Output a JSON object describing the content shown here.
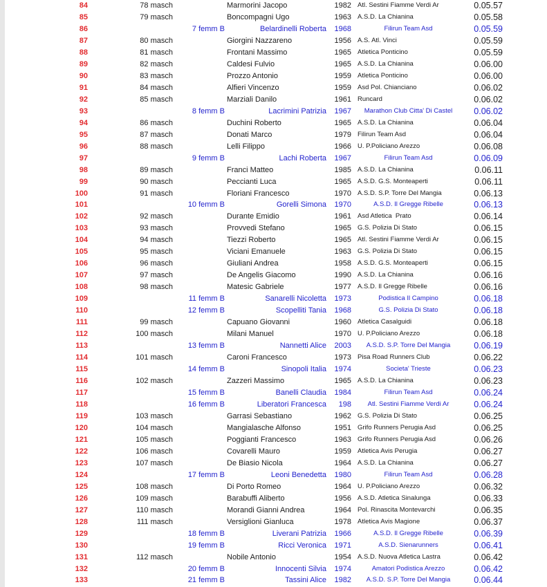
{
  "colors": {
    "position_number": "#e22b2f",
    "male_text": "#1c1c1c",
    "female_text": "#2323cd",
    "background": "#ffffff",
    "left_strip": "#e7e7e7"
  },
  "table": {
    "rows": [
      {
        "pos": "84",
        "category": "78 masch",
        "name": "Marmorini Jacopo",
        "year": "1982",
        "club": "Atl. Sestini Fiamme Verdi Ar",
        "time": "0.05.57",
        "gender": "m"
      },
      {
        "pos": "85",
        "category": "79 masch",
        "name": "Boncompagni Ugo",
        "year": "1963",
        "club": "A.S.D. La Chianina",
        "time": "0.05.58",
        "gender": "m"
      },
      {
        "pos": "86",
        "category": "7 femm B",
        "name": "Belardinelli Roberta",
        "year": "1968",
        "club": "Filirun Team Asd",
        "time": "0.05.59",
        "gender": "f"
      },
      {
        "pos": "87",
        "category": "80 masch",
        "name": "Giorgini Nazzareno",
        "year": "1956",
        "club": "A.S. Atl. Vinci",
        "time": "0.05.59",
        "gender": "m"
      },
      {
        "pos": "88",
        "category": "81 masch",
        "name": "Frontani Massimo",
        "year": "1965",
        "club": "Atletica Ponticino",
        "time": "0.05.59",
        "gender": "m"
      },
      {
        "pos": "89",
        "category": "82 masch",
        "name": "Caldesi Fulvio",
        "year": "1965",
        "club": "A.S.D. La Chianina",
        "time": "0.06.00",
        "gender": "m"
      },
      {
        "pos": "90",
        "category": "83 masch",
        "name": "Prozzo Antonio",
        "year": "1959",
        "club": "Atletica Ponticino",
        "time": "0.06.00",
        "gender": "m"
      },
      {
        "pos": "91",
        "category": "84 masch",
        "name": "Alfieri Vincenzo",
        "year": "1959",
        "club": "Asd Pol. Chianciano",
        "time": "0.06.02",
        "gender": "m"
      },
      {
        "pos": "92",
        "category": "85 masch",
        "name": "Marziali Danilo",
        "year": "1961",
        "club": "Runcard",
        "time": "0.06.02",
        "gender": "m"
      },
      {
        "pos": "93",
        "category": "8 femm B",
        "name": "Lacrimini Patrizia",
        "year": "1967",
        "club": "Marathon Club Citta' Di Castel",
        "time": "0.06.02",
        "gender": "f"
      },
      {
        "pos": "94",
        "category": "86 masch",
        "name": "Duchini Roberto",
        "year": "1965",
        "club": "A.S.D. La Chianina",
        "time": "0.06.04",
        "gender": "m"
      },
      {
        "pos": "95",
        "category": "87 masch",
        "name": "Donati Marco",
        "year": "1979",
        "club": "Filirun Team Asd",
        "time": "0.06.04",
        "gender": "m"
      },
      {
        "pos": "96",
        "category": "88 masch",
        "name": "Lelli Filippo",
        "year": "1966",
        "club": "U. P.Policiano Arezzo",
        "time": "0.06.08",
        "gender": "m"
      },
      {
        "pos": "97",
        "category": "9 femm B",
        "name": "Lachi Roberta",
        "year": "1967",
        "club": "Filirun Team Asd",
        "time": "0.06.09",
        "gender": "f"
      },
      {
        "pos": "98",
        "category": "89 masch",
        "name": "Franci Matteo",
        "year": "1985",
        "club": "A.S.D. La Chianina",
        "time": "0.06.11",
        "gender": "m"
      },
      {
        "pos": "99",
        "category": "90 masch",
        "name": "Peccianti Luca",
        "year": "1965",
        "club": "A.S.D. G.S. Monteaperti",
        "time": "0.06.11",
        "gender": "m"
      },
      {
        "pos": "100",
        "category": "91 masch",
        "name": "Floriani Francesco",
        "year": "1970",
        "club": "A.S.D. S.P. Torre Del Mangia",
        "time": "0.06.13",
        "gender": "m"
      },
      {
        "pos": "101",
        "category": "10 femm B",
        "name": "Gorelli Simona",
        "year": "1970",
        "club": "A.S.D. Il Gregge Ribelle",
        "time": "0.06.13",
        "gender": "f"
      },
      {
        "pos": "102",
        "category": "92 masch",
        "name": "Durante Emidio",
        "year": "1961",
        "club": "Asd Atletica  Prato",
        "time": "0.06.14",
        "gender": "m"
      },
      {
        "pos": "103",
        "category": "93 masch",
        "name": "Provvedi Stefano",
        "year": "1965",
        "club": "G.S. Polizia Di Stato",
        "time": "0.06.15",
        "gender": "m"
      },
      {
        "pos": "104",
        "category": "94 masch",
        "name": "Tiezzi Roberto",
        "year": "1965",
        "club": "Atl. Sestini Fiamme Verdi Ar",
        "time": "0.06.15",
        "gender": "m"
      },
      {
        "pos": "105",
        "category": "95 masch",
        "name": "Viciani Emanuele",
        "year": "1963",
        "club": "G.S. Polizia Di Stato",
        "time": "0.06.15",
        "gender": "m"
      },
      {
        "pos": "106",
        "category": "96 masch",
        "name": "Giuliani Andrea",
        "year": "1958",
        "club": "A.S.D. G.S. Monteaperti",
        "time": "0.06.15",
        "gender": "m"
      },
      {
        "pos": "107",
        "category": "97 masch",
        "name": "De Angelis Giacomo",
        "year": "1990",
        "club": "A.S.D. La Chianina",
        "time": "0.06.16",
        "gender": "m"
      },
      {
        "pos": "108",
        "category": "98 masch",
        "name": "Matesic Gabriele",
        "year": "1977",
        "club": "A.S.D. Il Gregge Ribelle",
        "time": "0.06.16",
        "gender": "m"
      },
      {
        "pos": "109",
        "category": "11 femm B",
        "name": "Sanarelli Nicoletta",
        "year": "1973",
        "club": "Podistica Il Campino",
        "time": "0.06.18",
        "gender": "f"
      },
      {
        "pos": "110",
        "category": "12 femm B",
        "name": "Scopelliti Tania",
        "year": "1968",
        "club": "G.S. Polizia Di Stato",
        "time": "0.06.18",
        "gender": "f"
      },
      {
        "pos": "111",
        "category": "99 masch",
        "name": "Capuano Giovanni",
        "year": "1960",
        "club": "Atletica Casalguidi",
        "time": "0.06.18",
        "gender": "m"
      },
      {
        "pos": "112",
        "category": "100 masch",
        "name": "Milani Manuel",
        "year": "1970",
        "club": "U. P.Policiano Arezzo",
        "time": "0.06.18",
        "gender": "m"
      },
      {
        "pos": "113",
        "category": "13 femm B",
        "name": "Nannetti Alice",
        "year": "2003",
        "club": "A.S.D. S.P. Torre Del Mangia",
        "time": "0.06.19",
        "gender": "f"
      },
      {
        "pos": "114",
        "category": "101 masch",
        "name": "Caroni Francesco",
        "year": "1973",
        "club": "Pisa Road Runners Club",
        "time": "0.06.22",
        "gender": "m"
      },
      {
        "pos": "115",
        "category": "14 femm B",
        "name": "Sinopoli Italia",
        "year": "1974",
        "club": "Societa' Trieste",
        "time": "0.06.23",
        "gender": "f"
      },
      {
        "pos": "116",
        "category": "102 masch",
        "name": "Zazzeri Massimo",
        "year": "1965",
        "club": "A.S.D. La Chianina",
        "time": "0.06.23",
        "gender": "m"
      },
      {
        "pos": "117",
        "category": "15 femm B",
        "name": "Banelli Claudia",
        "year": "1984",
        "club": "Filirun Team Asd",
        "time": "0.06.24",
        "gender": "f"
      },
      {
        "pos": "118",
        "category": "16 femm B",
        "name": "Liberatori Francesca",
        "year": "198",
        "club": "Atl. Sestini Fiamme Verdi Ar",
        "time": "0.06.24",
        "gender": "f"
      },
      {
        "pos": "119",
        "category": "103 masch",
        "name": "Garrasi Sebastiano",
        "year": "1962",
        "club": "G.S. Polizia Di Stato",
        "time": "0.06.25",
        "gender": "m"
      },
      {
        "pos": "120",
        "category": "104 masch",
        "name": "Mangialasche Alfonso",
        "year": "1951",
        "club": "Grifo Runners Perugia Asd",
        "time": "0.06.25",
        "gender": "m"
      },
      {
        "pos": "121",
        "category": "105 masch",
        "name": "Poggianti Francesco",
        "year": "1963",
        "club": "Grifo Runners Perugia Asd",
        "time": "0.06.26",
        "gender": "m"
      },
      {
        "pos": "122",
        "category": "106 masch",
        "name": "Covarelli Mauro",
        "year": "1959",
        "club": "Atletica Avis Perugia",
        "time": "0.06.27",
        "gender": "m"
      },
      {
        "pos": "123",
        "category": "107 masch",
        "name": "De Biasio Nicola",
        "year": "1964",
        "club": "A.S.D. La Chianina",
        "time": "0.06.27",
        "gender": "m"
      },
      {
        "pos": "124",
        "category": "17 femm B",
        "name": "Leoni Benedetta",
        "year": "1980",
        "club": "Filirun Team Asd",
        "time": "0.06.28",
        "gender": "f"
      },
      {
        "pos": "125",
        "category": "108 masch",
        "name": "Di Porto Romeo",
        "year": "1964",
        "club": "U. P.Policiano Arezzo",
        "time": "0.06.32",
        "gender": "m"
      },
      {
        "pos": "126",
        "category": "109 masch",
        "name": "Barabuffi Aliberto",
        "year": "1956",
        "club": "A.S.D. Atletica Sinalunga",
        "time": "0.06.33",
        "gender": "m"
      },
      {
        "pos": "127",
        "category": "110 masch",
        "name": "Morandi Gianni Andrea",
        "year": "1964",
        "club": "Pol. Rinascita Montevarchi",
        "time": "0.06.35",
        "gender": "m"
      },
      {
        "pos": "128",
        "category": "111 masch",
        "name": "Versiglioni Gianluca",
        "year": "1978",
        "club": "Atletica Avis Magione",
        "time": "0.06.37",
        "gender": "m"
      },
      {
        "pos": "129",
        "category": "18 femm B",
        "name": "Liverani Patrizia",
        "year": "1966",
        "club": "A.S.D. Il Gregge Ribelle",
        "time": "0.06.39",
        "gender": "f"
      },
      {
        "pos": "130",
        "category": "19 femm B",
        "name": "Ricci Veronica",
        "year": "1971",
        "club": "A.S.D. Sienarunners",
        "time": "0.06.41",
        "gender": "f"
      },
      {
        "pos": "131",
        "category": "112 masch",
        "name": "Nobile Antonio",
        "year": "1954",
        "club": "A.S.D. Nuova Atletica Lastra",
        "time": "0.06.42",
        "gender": "m"
      },
      {
        "pos": "132",
        "category": "20 femm B",
        "name": "Innocenti Silvia",
        "year": "1974",
        "club": "Amatori Podistica Arezzo",
        "time": "0.06.42",
        "gender": "f"
      },
      {
        "pos": "133",
        "category": "21 femm B",
        "name": "Tassini Alice",
        "year": "1982",
        "club": "A.S.D. S.P. Torre Del Mangia",
        "time": "0.06.44",
        "gender": "f"
      }
    ]
  }
}
